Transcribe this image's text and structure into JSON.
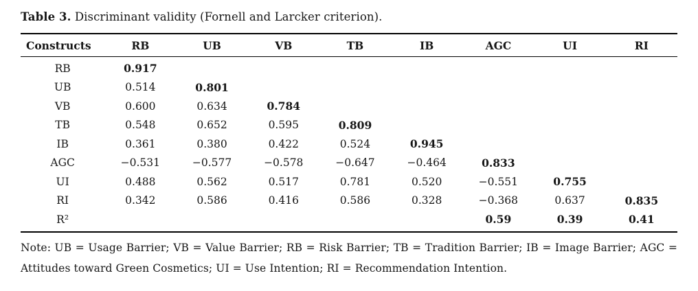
{
  "title": {
    "label_bold": "Table 3.",
    "label_rest": " Discriminant validity (Fornell and Larcker criterion)."
  },
  "table": {
    "headers": [
      "Constructs",
      "RB",
      "UB",
      "VB",
      "TB",
      "IB",
      "AGC",
      "UI",
      "RI"
    ],
    "rows": [
      {
        "label": "RB",
        "cells": [
          {
            "v": "0.917",
            "b": true
          },
          {
            "v": ""
          },
          {
            "v": ""
          },
          {
            "v": ""
          },
          {
            "v": ""
          },
          {
            "v": ""
          },
          {
            "v": ""
          },
          {
            "v": ""
          }
        ]
      },
      {
        "label": "UB",
        "cells": [
          {
            "v": "0.514"
          },
          {
            "v": "0.801",
            "b": true
          },
          {
            "v": ""
          },
          {
            "v": ""
          },
          {
            "v": ""
          },
          {
            "v": ""
          },
          {
            "v": ""
          },
          {
            "v": ""
          }
        ]
      },
      {
        "label": "VB",
        "cells": [
          {
            "v": "0.600"
          },
          {
            "v": "0.634"
          },
          {
            "v": "0.784",
            "b": true
          },
          {
            "v": ""
          },
          {
            "v": ""
          },
          {
            "v": ""
          },
          {
            "v": ""
          },
          {
            "v": ""
          }
        ]
      },
      {
        "label": "TB",
        "cells": [
          {
            "v": "0.548"
          },
          {
            "v": "0.652"
          },
          {
            "v": "0.595"
          },
          {
            "v": "0.809",
            "b": true
          },
          {
            "v": ""
          },
          {
            "v": ""
          },
          {
            "v": ""
          },
          {
            "v": ""
          }
        ]
      },
      {
        "label": "IB",
        "cells": [
          {
            "v": "0.361"
          },
          {
            "v": "0.380"
          },
          {
            "v": "0.422"
          },
          {
            "v": "0.524"
          },
          {
            "v": "0.945",
            "b": true
          },
          {
            "v": ""
          },
          {
            "v": ""
          },
          {
            "v": ""
          }
        ]
      },
      {
        "label": "AGC",
        "cells": [
          {
            "v": "−0.531"
          },
          {
            "v": "−0.577"
          },
          {
            "v": "−0.578"
          },
          {
            "v": "−0.647"
          },
          {
            "v": "−0.464"
          },
          {
            "v": "0.833",
            "b": true
          },
          {
            "v": ""
          },
          {
            "v": ""
          }
        ]
      },
      {
        "label": "UI",
        "cells": [
          {
            "v": "0.488"
          },
          {
            "v": "0.562"
          },
          {
            "v": "0.517"
          },
          {
            "v": "0.781"
          },
          {
            "v": "0.520"
          },
          {
            "v": "−0.551"
          },
          {
            "v": "0.755",
            "b": true
          },
          {
            "v": ""
          }
        ]
      },
      {
        "label": "RI",
        "cells": [
          {
            "v": "0.342"
          },
          {
            "v": "0.586"
          },
          {
            "v": "0.416"
          },
          {
            "v": "0.586"
          },
          {
            "v": "0.328"
          },
          {
            "v": "−0.368"
          },
          {
            "v": "0.637"
          },
          {
            "v": "0.835",
            "b": true
          }
        ]
      },
      {
        "label": "R²",
        "cells": [
          {
            "v": ""
          },
          {
            "v": ""
          },
          {
            "v": ""
          },
          {
            "v": ""
          },
          {
            "v": ""
          },
          {
            "v": "0.59",
            "b": true
          },
          {
            "v": "0.39",
            "b": true
          },
          {
            "v": "0.41",
            "b": true
          }
        ]
      }
    ]
  },
  "note": {
    "line1": "Note: UB = Usage Barrier; VB = Value Barrier; RB = Risk Barrier; TB = Tradition Barrier; IB = Image Barrier; AGC =",
    "line2": "Attitudes toward Green Cosmetics; UI = Use Intention; RI = Recommendation Intention."
  },
  "colors": {
    "text": "#161616",
    "rule": "#000000",
    "background": "#ffffff"
  }
}
